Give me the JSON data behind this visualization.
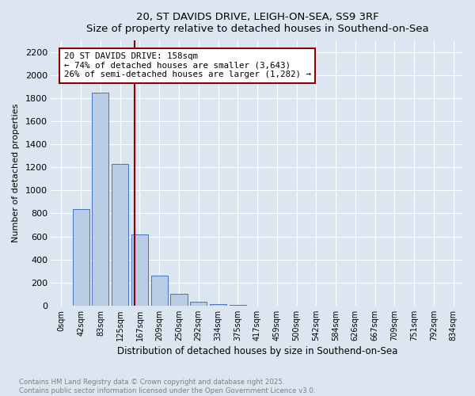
{
  "title1": "20, ST DAVIDS DRIVE, LEIGH-ON-SEA, SS9 3RF",
  "title2": "Size of property relative to detached houses in Southend-on-Sea",
  "xlabel": "Distribution of detached houses by size in Southend-on-Sea",
  "ylabel": "Number of detached properties",
  "bar_values": [
    0,
    840,
    1850,
    1230,
    620,
    260,
    100,
    30,
    10,
    5,
    2,
    1,
    1,
    0,
    0,
    0,
    0,
    0,
    0,
    0,
    0
  ],
  "categories": [
    "0sqm",
    "42sqm",
    "83sqm",
    "125sqm",
    "167sqm",
    "209sqm",
    "250sqm",
    "292sqm",
    "334sqm",
    "375sqm",
    "417sqm",
    "459sqm",
    "500sqm",
    "542sqm",
    "584sqm",
    "626sqm",
    "667sqm",
    "709sqm",
    "751sqm",
    "792sqm",
    "834sqm"
  ],
  "bar_color": "#b8cce4",
  "bar_edge_color": "#4472c4",
  "vline_x": 3.74,
  "vline_color": "#8b0000",
  "annotation_text": "20 ST DAVIDS DRIVE: 158sqm\n← 74% of detached houses are smaller (3,643)\n26% of semi-detached houses are larger (1,282) →",
  "annotation_box_color": "#ffffff",
  "annotation_box_edge": "#8b0000",
  "ylim": [
    0,
    2300
  ],
  "yticks": [
    0,
    200,
    400,
    600,
    800,
    1000,
    1200,
    1400,
    1600,
    1800,
    2000,
    2200
  ],
  "bg_color": "#dce6f1",
  "grid_color": "#ffffff",
  "footer1": "Contains HM Land Registry data © Crown copyright and database right 2025.",
  "footer2": "Contains public sector information licensed under the Open Government Licence v3.0.",
  "footer_color": "#808080"
}
